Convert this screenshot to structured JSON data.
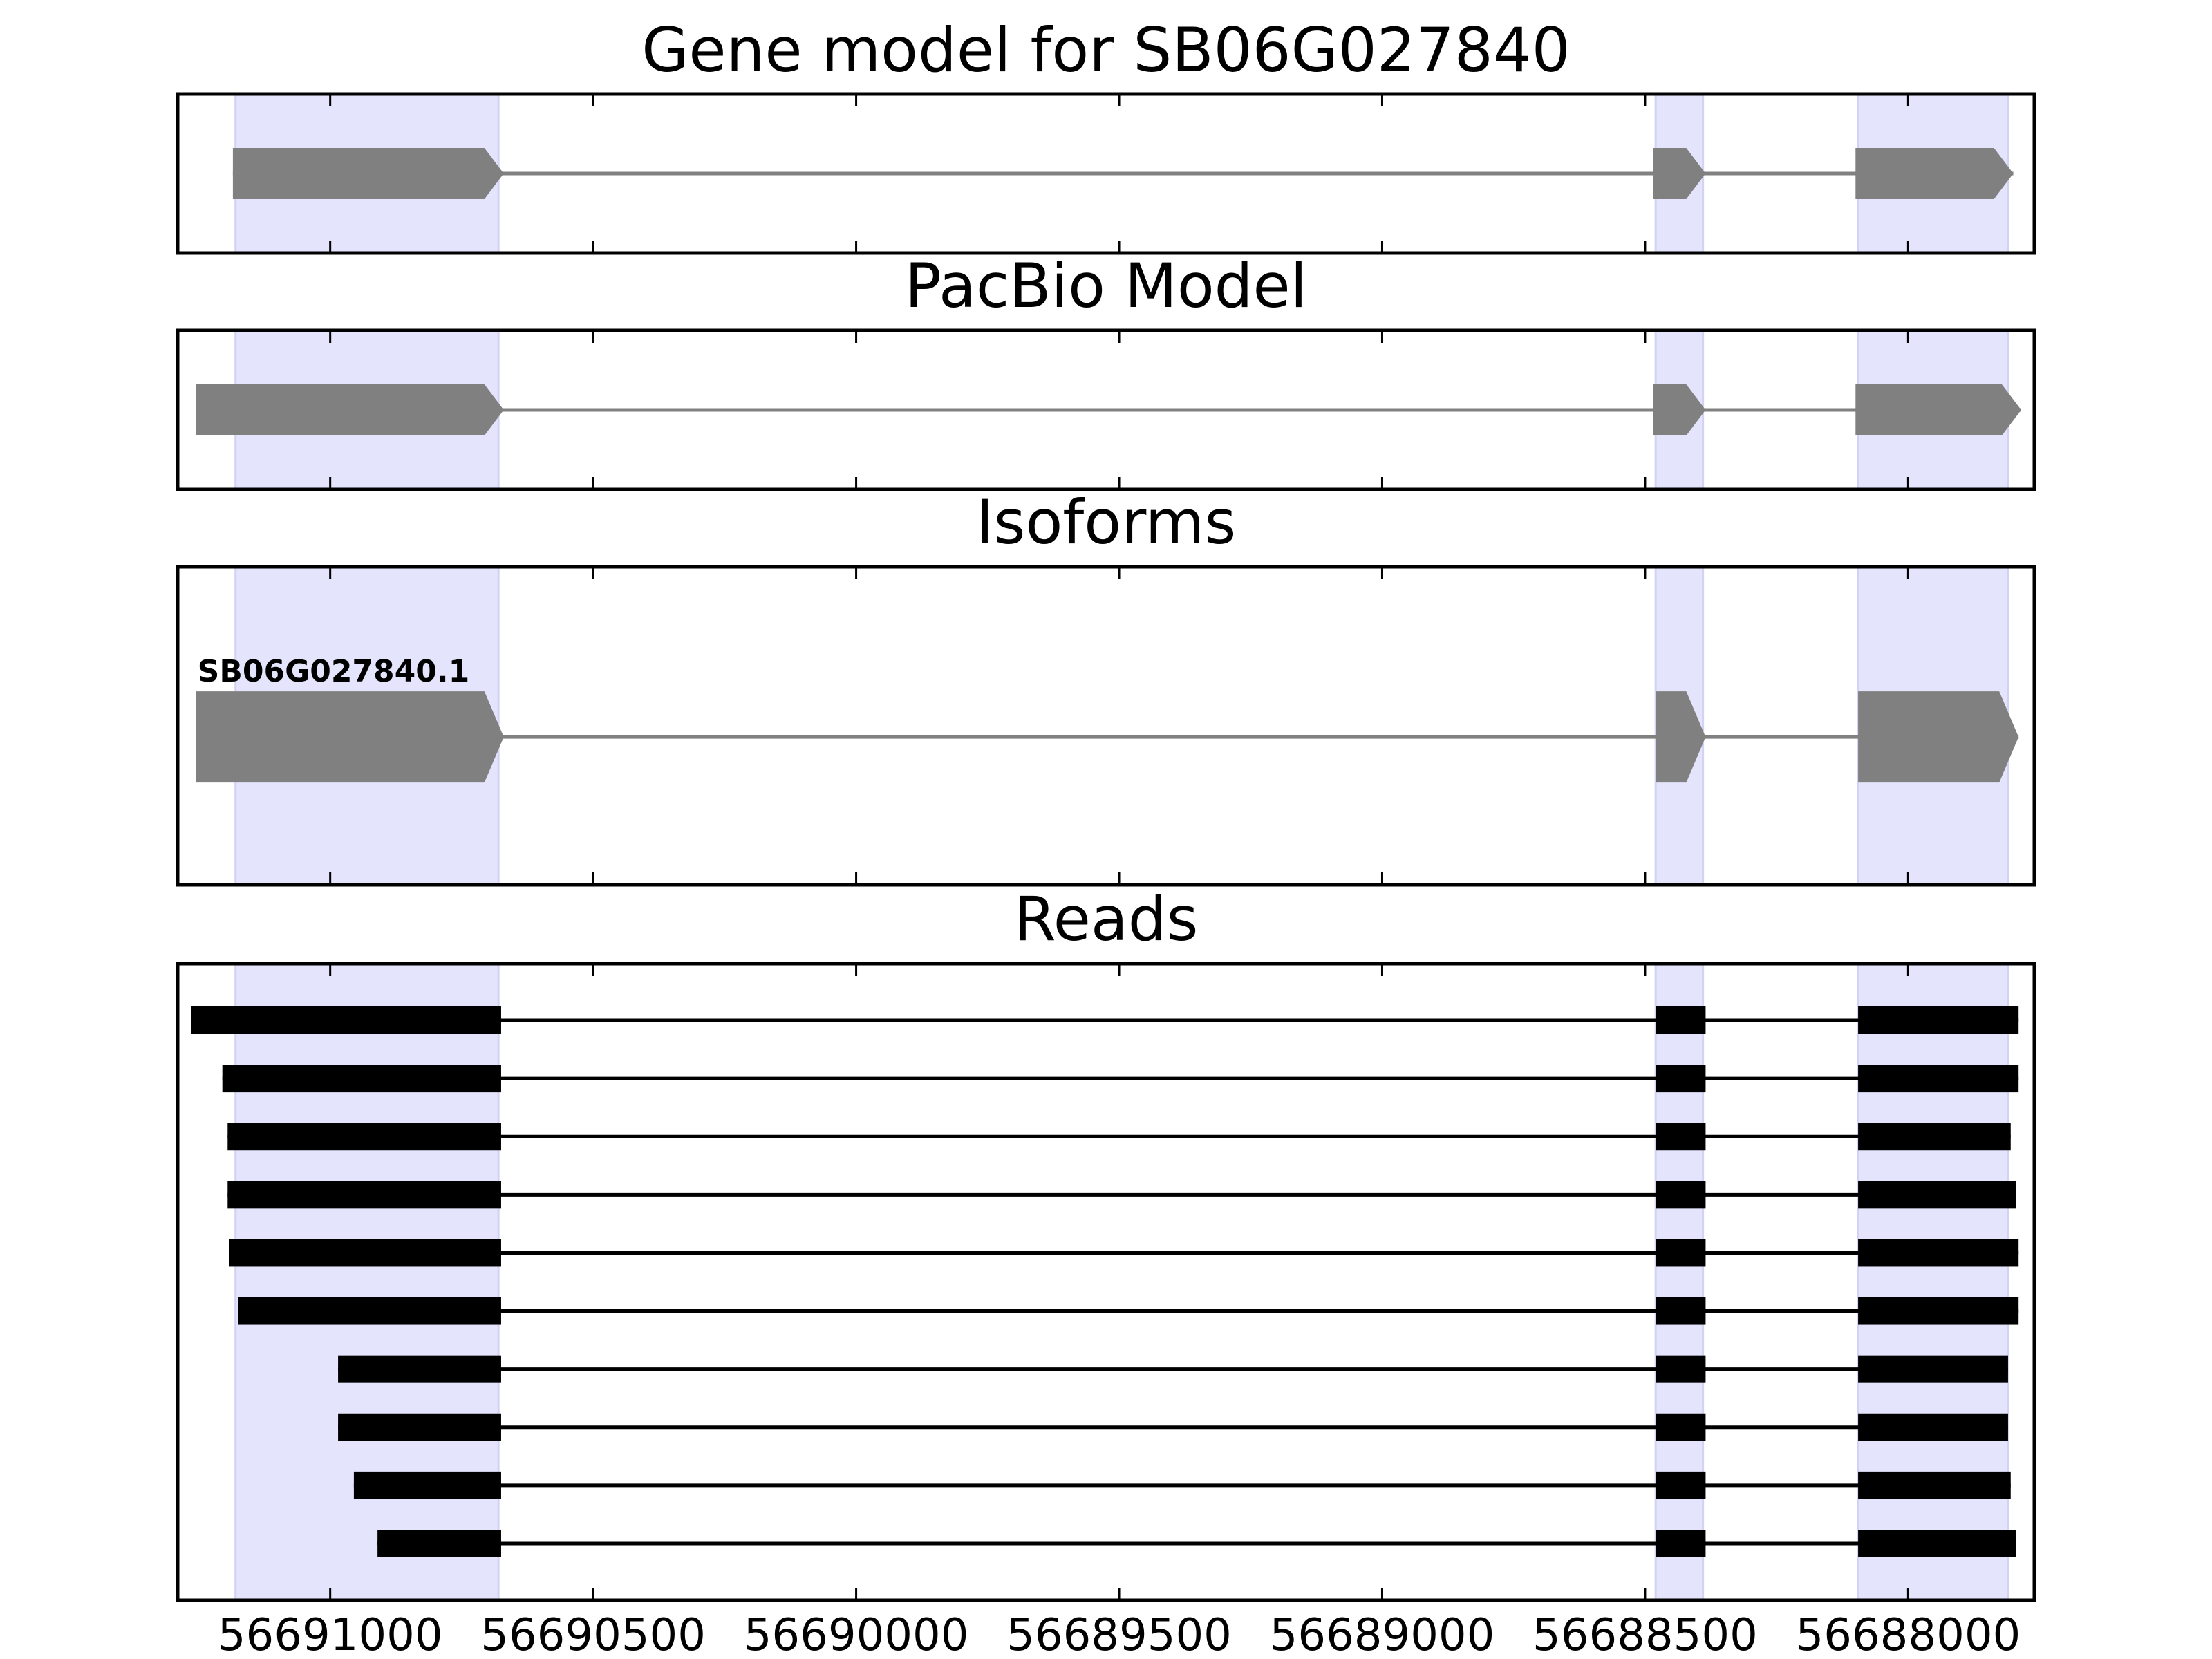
{
  "chart_data": {
    "type": "gene-structure",
    "xlim": [
      56691290,
      56687760
    ],
    "x_ticks": [
      {
        "value": 56691000,
        "label": "56691000"
      },
      {
        "value": 56690500,
        "label": "56690500"
      },
      {
        "value": 56690000,
        "label": "56690000"
      },
      {
        "value": 56689500,
        "label": "56689500"
      },
      {
        "value": 56689000,
        "label": "56689000"
      },
      {
        "value": 56688500,
        "label": "56688500"
      },
      {
        "value": 56688000,
        "label": "56688000"
      }
    ],
    "highlight_color": "#e4e4fc",
    "feature_color": "#808080",
    "read_color": "#000000",
    "highlighted_regions": [
      [
        56691180,
        56690680
      ],
      [
        56688480,
        56688390
      ],
      [
        56688095,
        56687810
      ]
    ],
    "panels": [
      {
        "title": "Gene model for SB06G027840",
        "tracks": [
          {
            "exons": [
              [
                56691185,
                56690670
              ],
              [
                56688485,
                56688385
              ],
              [
                56688100,
                56687800
              ]
            ]
          }
        ]
      },
      {
        "title": "PacBio Model",
        "tracks": [
          {
            "exons": [
              [
                56691255,
                56690670
              ],
              [
                56688485,
                56688385
              ],
              [
                56688100,
                56687785
              ]
            ]
          }
        ]
      },
      {
        "title": "Isoforms",
        "tracks": [
          {
            "label": "SB06G027840.1",
            "exons": [
              [
                56691255,
                56690670
              ],
              [
                56688480,
                56688385
              ],
              [
                56688095,
                56687790
              ]
            ]
          }
        ]
      },
      {
        "title": "Reads",
        "tracks": [
          {
            "exons": [
              [
                56691265,
                56690675
              ],
              [
                56688480,
                56688385
              ],
              [
                56688095,
                56687790
              ]
            ]
          },
          {
            "exons": [
              [
                56691205,
                56690675
              ],
              [
                56688480,
                56688385
              ],
              [
                56688095,
                56687790
              ]
            ]
          },
          {
            "exons": [
              [
                56691195,
                56690675
              ],
              [
                56688480,
                56688385
              ],
              [
                56688095,
                56687805
              ]
            ]
          },
          {
            "exons": [
              [
                56691195,
                56690675
              ],
              [
                56688480,
                56688385
              ],
              [
                56688095,
                56687795
              ]
            ]
          },
          {
            "exons": [
              [
                56691192,
                56690675
              ],
              [
                56688480,
                56688385
              ],
              [
                56688095,
                56687790
              ]
            ]
          },
          {
            "exons": [
              [
                56691175,
                56690675
              ],
              [
                56688480,
                56688385
              ],
              [
                56688095,
                56687790
              ]
            ]
          },
          {
            "exons": [
              [
                56690985,
                56690675
              ],
              [
                56688480,
                56688385
              ],
              [
                56688095,
                56687810
              ]
            ]
          },
          {
            "exons": [
              [
                56690985,
                56690675
              ],
              [
                56688480,
                56688385
              ],
              [
                56688095,
                56687810
              ]
            ]
          },
          {
            "exons": [
              [
                56690955,
                56690675
              ],
              [
                56688480,
                56688385
              ],
              [
                56688095,
                56687805
              ]
            ]
          },
          {
            "exons": [
              [
                56690910,
                56690675
              ],
              [
                56688480,
                56688385
              ],
              [
                56688095,
                56687795
              ]
            ]
          }
        ]
      }
    ]
  }
}
